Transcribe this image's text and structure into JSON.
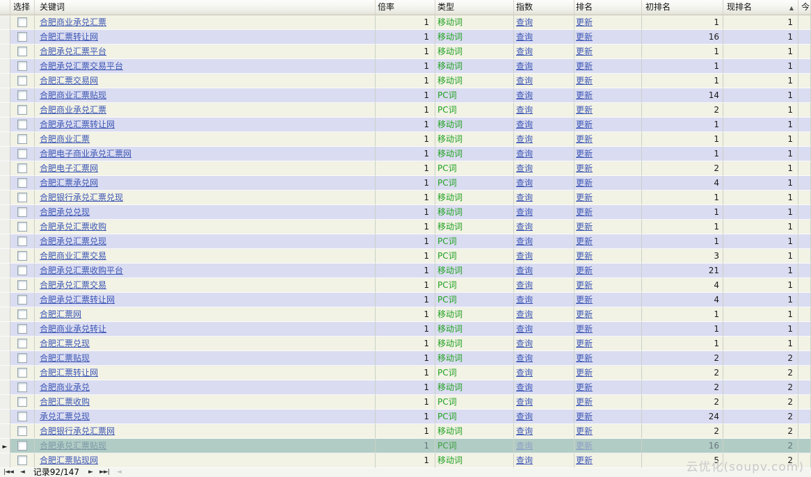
{
  "header": {
    "columns": [
      "",
      "选择",
      "关键词",
      "倍率",
      "类型",
      "指数",
      "排名",
      "初排名",
      "现排名",
      "今"
    ],
    "sort_icon": "▲"
  },
  "table": {
    "selected_indicator": "►",
    "rows": [
      {
        "keyword": "合肥商业承兑汇票",
        "rate": "1",
        "type": "移动词",
        "index_link": "查询",
        "rank_link": "更新",
        "init_rank": "1",
        "cur_rank": "1",
        "selected": false
      },
      {
        "keyword": "合肥汇票转让网",
        "rate": "1",
        "type": "移动词",
        "index_link": "查询",
        "rank_link": "更新",
        "init_rank": "16",
        "cur_rank": "1",
        "selected": false
      },
      {
        "keyword": "合肥承兑汇票平台",
        "rate": "1",
        "type": "移动词",
        "index_link": "查询",
        "rank_link": "更新",
        "init_rank": "1",
        "cur_rank": "1",
        "selected": false
      },
      {
        "keyword": "合肥承兑汇票交易平台",
        "rate": "1",
        "type": "移动词",
        "index_link": "查询",
        "rank_link": "更新",
        "init_rank": "1",
        "cur_rank": "1",
        "selected": false
      },
      {
        "keyword": "合肥汇票交易网",
        "rate": "1",
        "type": "移动词",
        "index_link": "查询",
        "rank_link": "更新",
        "init_rank": "1",
        "cur_rank": "1",
        "selected": false
      },
      {
        "keyword": "合肥商业汇票贴现",
        "rate": "1",
        "type": "PC词",
        "index_link": "查询",
        "rank_link": "更新",
        "init_rank": "14",
        "cur_rank": "1",
        "selected": false
      },
      {
        "keyword": "合肥商业承兑汇票",
        "rate": "1",
        "type": "PC词",
        "index_link": "查询",
        "rank_link": "更新",
        "init_rank": "2",
        "cur_rank": "1",
        "selected": false
      },
      {
        "keyword": "合肥承兑汇票转让网",
        "rate": "1",
        "type": "移动词",
        "index_link": "查询",
        "rank_link": "更新",
        "init_rank": "1",
        "cur_rank": "1",
        "selected": false
      },
      {
        "keyword": "合肥商业汇票",
        "rate": "1",
        "type": "移动词",
        "index_link": "查询",
        "rank_link": "更新",
        "init_rank": "1",
        "cur_rank": "1",
        "selected": false
      },
      {
        "keyword": "合肥电子商业承兑汇票网",
        "rate": "1",
        "type": "移动词",
        "index_link": "查询",
        "rank_link": "更新",
        "init_rank": "1",
        "cur_rank": "1",
        "selected": false
      },
      {
        "keyword": "合肥电子汇票网",
        "rate": "1",
        "type": "PC词",
        "index_link": "查询",
        "rank_link": "更新",
        "init_rank": "2",
        "cur_rank": "1",
        "selected": false
      },
      {
        "keyword": "合肥汇票承兑网",
        "rate": "1",
        "type": "PC词",
        "index_link": "查询",
        "rank_link": "更新",
        "init_rank": "4",
        "cur_rank": "1",
        "selected": false
      },
      {
        "keyword": "合肥银行承兑汇票兑现",
        "rate": "1",
        "type": "移动词",
        "index_link": "查询",
        "rank_link": "更新",
        "init_rank": "1",
        "cur_rank": "1",
        "selected": false
      },
      {
        "keyword": "合肥承兑兑现",
        "rate": "1",
        "type": "移动词",
        "index_link": "查询",
        "rank_link": "更新",
        "init_rank": "1",
        "cur_rank": "1",
        "selected": false
      },
      {
        "keyword": "合肥承兑汇票收购",
        "rate": "1",
        "type": "移动词",
        "index_link": "查询",
        "rank_link": "更新",
        "init_rank": "1",
        "cur_rank": "1",
        "selected": false
      },
      {
        "keyword": "合肥承兑汇票兑现",
        "rate": "1",
        "type": "PC词",
        "index_link": "查询",
        "rank_link": "更新",
        "init_rank": "1",
        "cur_rank": "1",
        "selected": false
      },
      {
        "keyword": "合肥商业汇票交易",
        "rate": "1",
        "type": "PC词",
        "index_link": "查询",
        "rank_link": "更新",
        "init_rank": "3",
        "cur_rank": "1",
        "selected": false
      },
      {
        "keyword": "合肥承兑汇票收购平台",
        "rate": "1",
        "type": "移动词",
        "index_link": "查询",
        "rank_link": "更新",
        "init_rank": "21",
        "cur_rank": "1",
        "selected": false
      },
      {
        "keyword": "合肥承兑汇票交易",
        "rate": "1",
        "type": "PC词",
        "index_link": "查询",
        "rank_link": "更新",
        "init_rank": "4",
        "cur_rank": "1",
        "selected": false
      },
      {
        "keyword": "合肥承兑汇票转让网",
        "rate": "1",
        "type": "PC词",
        "index_link": "查询",
        "rank_link": "更新",
        "init_rank": "4",
        "cur_rank": "1",
        "selected": false
      },
      {
        "keyword": "合肥汇票网",
        "rate": "1",
        "type": "移动词",
        "index_link": "查询",
        "rank_link": "更新",
        "init_rank": "1",
        "cur_rank": "1",
        "selected": false
      },
      {
        "keyword": "合肥商业承兑转让",
        "rate": "1",
        "type": "移动词",
        "index_link": "查询",
        "rank_link": "更新",
        "init_rank": "1",
        "cur_rank": "1",
        "selected": false
      },
      {
        "keyword": "合肥汇票兑现",
        "rate": "1",
        "type": "移动词",
        "index_link": "查询",
        "rank_link": "更新",
        "init_rank": "1",
        "cur_rank": "1",
        "selected": false
      },
      {
        "keyword": "合肥汇票贴现",
        "rate": "1",
        "type": "移动词",
        "index_link": "查询",
        "rank_link": "更新",
        "init_rank": "2",
        "cur_rank": "2",
        "selected": false
      },
      {
        "keyword": "合肥汇票转让网",
        "rate": "1",
        "type": "PC词",
        "index_link": "查询",
        "rank_link": "更新",
        "init_rank": "2",
        "cur_rank": "2",
        "selected": false
      },
      {
        "keyword": "合肥商业承兑",
        "rate": "1",
        "type": "移动词",
        "index_link": "查询",
        "rank_link": "更新",
        "init_rank": "2",
        "cur_rank": "2",
        "selected": false
      },
      {
        "keyword": "合肥汇票收购",
        "rate": "1",
        "type": "PC词",
        "index_link": "查询",
        "rank_link": "更新",
        "init_rank": "2",
        "cur_rank": "2",
        "selected": false
      },
      {
        "keyword": "承兑汇票兑现",
        "rate": "1",
        "type": "PC词",
        "index_link": "查询",
        "rank_link": "更新",
        "init_rank": "24",
        "cur_rank": "2",
        "selected": false
      },
      {
        "keyword": "合肥银行承兑汇票网",
        "rate": "1",
        "type": "移动词",
        "index_link": "查询",
        "rank_link": "更新",
        "init_rank": "2",
        "cur_rank": "2",
        "selected": false
      },
      {
        "keyword": "合肥承兑汇票贴现",
        "rate": "1",
        "type": "PC词",
        "index_link": "查询",
        "rank_link": "更新",
        "init_rank": "16",
        "cur_rank": "2",
        "selected": true
      },
      {
        "keyword": "合肥汇票贴现网",
        "rate": "1",
        "type": "移动词",
        "index_link": "查询",
        "rank_link": "更新",
        "init_rank": "5",
        "cur_rank": "2",
        "selected": false
      }
    ]
  },
  "footer": {
    "first": "|◄◄",
    "prev": "◄",
    "record_label": "记录92/147",
    "next": "►",
    "last": "►►|",
    "scroll_left": "◄"
  },
  "watermark": "云优化(soupv.com)",
  "colors": {
    "row_odd": "#f2f2e5",
    "row_even": "#dadcf1",
    "row_selected": "#b1ccc5",
    "link": "#3c56b4",
    "type_green": "#1ea01e"
  }
}
